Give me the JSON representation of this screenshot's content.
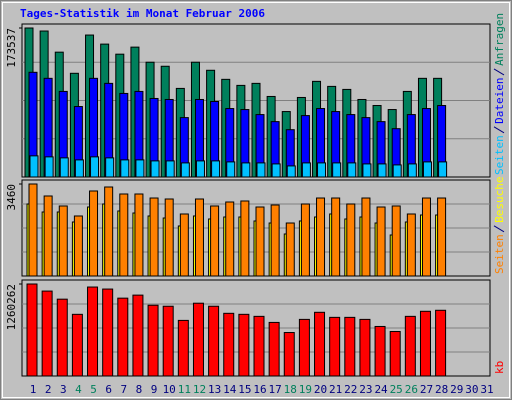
{
  "chart_data": [
    {
      "type": "bar",
      "title": "Tages-Statistik im Monat Februar 2006",
      "ylim": [
        0,
        173537
      ],
      "yticks": [
        173537
      ],
      "series": [
        {
          "name": "Anfragen",
          "color": "#00805c",
          "values": [
            173537,
            170020,
            145395,
            120770,
            165330,
            154777,
            143052,
            151260,
            133671,
            128981,
            103184,
            133671,
            124291,
            113738,
            106703,
            109048,
            93804,
            76215,
            92632,
            111393,
            105529,
            102011,
            90286,
            83251,
            78561,
            99666,
            114910,
            114910,
            null,
            null,
            null
          ]
        },
        {
          "name": "Dateien",
          "color": "#0000ff",
          "values": [
            121945,
            114910,
            99667,
            82078,
            114910,
            109047,
            97322,
            99667,
            91459,
            90286,
            69180,
            90286,
            87941,
            79733,
            78561,
            72698,
            64490,
            55110,
            71526,
            79733,
            76216,
            72698,
            69180,
            64490,
            56282,
            72698,
            79733,
            83251,
            null,
            null,
            null
          ]
        },
        {
          "name": "Seiten",
          "color": "#00c0ff",
          "values": [
            24624,
            23451,
            22280,
            19933,
            23451,
            22280,
            19933,
            19933,
            18761,
            18761,
            16414,
            18761,
            18761,
            17588,
            16414,
            16414,
            15243,
            12898,
            16414,
            16414,
            16414,
            16414,
            15243,
            15243,
            14071,
            15243,
            17588,
            17588,
            null,
            null,
            null
          ]
        }
      ]
    },
    {
      "type": "bar",
      "ylim": [
        0,
        3460
      ],
      "yticks": [
        3460
      ],
      "series": [
        {
          "name": "Besuche",
          "color": "#ffff00",
          "values": [
            2708,
            2407,
            2407,
            2031,
            2595,
            2708,
            2445,
            2369,
            2257,
            2181,
            1881,
            2257,
            2144,
            2219,
            2219,
            2069,
            1993,
            1580,
            2069,
            2219,
            2332,
            2144,
            2219,
            1993,
            1542,
            2031,
            2294,
            2294,
            null,
            null,
            null
          ]
        },
        {
          "name": "Seiten",
          "color": "#ff8000",
          "values": [
            3460,
            3009,
            2633,
            2257,
            3197,
            3347,
            3084,
            3084,
            2933,
            2896,
            2332,
            2896,
            2633,
            2783,
            2821,
            2595,
            2670,
            1993,
            2708,
            2933,
            2933,
            2708,
            2933,
            2595,
            2633,
            2332,
            2933,
            2933,
            null,
            null,
            null
          ]
        }
      ]
    },
    {
      "type": "bar",
      "ylim": [
        0,
        1260262
      ],
      "yticks": [
        1260262
      ],
      "categories": [
        "1",
        "2",
        "3",
        "4",
        "5",
        "6",
        "7",
        "8",
        "9",
        "10",
        "11",
        "12",
        "13",
        "14",
        "15",
        "16",
        "17",
        "18",
        "19",
        "20",
        "21",
        "22",
        "23",
        "24",
        "25",
        "26",
        "27",
        "28",
        "29",
        "30",
        "31"
      ],
      "category_colors": [
        "#000080",
        "#000080",
        "#000080",
        "#00805c",
        "#00805c",
        "#000080",
        "#000080",
        "#000080",
        "#000080",
        "#000080",
        "#00805c",
        "#00805c",
        "#000080",
        "#000080",
        "#000080",
        "#000080",
        "#000080",
        "#00805c",
        "#00805c",
        "#000080",
        "#000080",
        "#000080",
        "#000080",
        "#000080",
        "#00805c",
        "#00805c",
        "#000080",
        "#000080",
        "#000080",
        "#000080",
        "#000080"
      ],
      "series": [
        {
          "name": "kb",
          "color": "#ff0000",
          "values": [
            1260262,
            1163316,
            1052524,
            844789,
            1218712,
            1191014,
            1066373,
            1107920,
            969430,
            955581,
            761695,
            997128,
            955581,
            858638,
            844789,
            817091,
            733997,
            595507,
            775544,
            872487,
            803242,
            803242,
            775544,
            678601,
            609356,
            817091,
            886336,
            900185,
            null,
            null,
            null
          ]
        }
      ]
    }
  ]
}
